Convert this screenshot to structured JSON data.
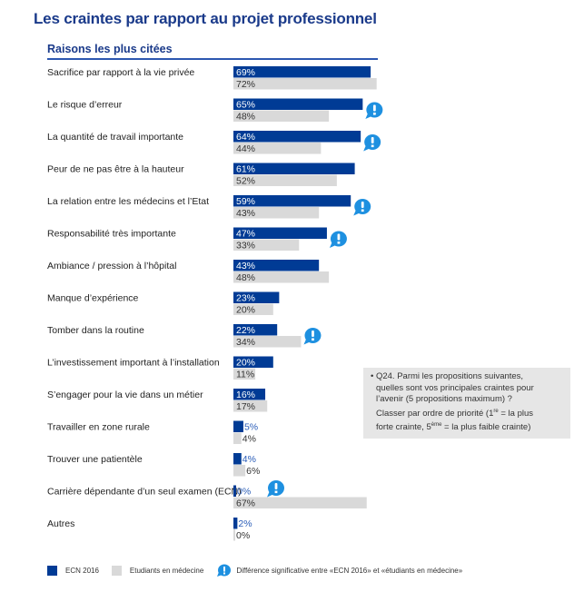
{
  "header": {
    "title": "Les craintes par rapport au projet professionnel",
    "subtitle": "Raisons les plus citées"
  },
  "colors": {
    "ecn": "#003b95",
    "students": "#d9d9d9",
    "significance_icon": "#1e90e0",
    "title": "#1a3a8a"
  },
  "chart_data": {
    "type": "bar",
    "orientation": "horizontal",
    "title": "Les craintes par rapport au projet professionnel",
    "subtitle": "Raisons les plus citées",
    "xlabel": "",
    "ylabel": "",
    "xlim": [
      0,
      100
    ],
    "unit": "%",
    "grid": false,
    "legend_position": "bottom-left",
    "categories": [
      "Sacrifice par rapport à la vie privée",
      "Le risque d’erreur",
      "La quantité de travail importante",
      "Peur de ne pas être à la hauteur",
      "La relation entre les médecins et l’Etat",
      "Responsabilité très importante",
      "Ambiance / pression à l’hôpital",
      "Manque d’expérience",
      "Tomber dans la routine",
      "L’investissement important à l’installation",
      "S’engager pour la vie dans un métier",
      "Travailler en zone rurale",
      "Trouver une patientèle",
      "Carrière dépendante d’un seul examen (ECN)",
      "Autres"
    ],
    "series": [
      {
        "name": "ECN 2016",
        "values": [
          69,
          65,
          64,
          61,
          59,
          47,
          43,
          23,
          22,
          20,
          16,
          5,
          4,
          0,
          2
        ]
      },
      {
        "name": "Etudiants en médecine",
        "values": [
          72,
          48,
          44,
          52,
          43,
          33,
          48,
          20,
          34,
          11,
          17,
          4,
          6,
          67,
          0
        ]
      }
    ],
    "significant_difference": [
      false,
      true,
      true,
      false,
      true,
      true,
      false,
      false,
      true,
      false,
      false,
      false,
      false,
      true,
      false
    ],
    "legend": [
      "ECN 2016",
      "Etudiants en médecine",
      "Différence significative entre «ECN 2016» et «étudiants en médecine»"
    ]
  },
  "note": {
    "line1": "• Q24. Parmi les propositions suivantes,",
    "line2": "quelles sont vos principales craintes pour",
    "line3": "l’avenir (5 propositions maximum) ?",
    "line4a": "Classer par ordre de priorité (1",
    "sup1": "re",
    "line4b": " = la plus",
    "line5a": "forte crainte, 5",
    "sup2": "ème",
    "line5b": " = la plus faible crainte)"
  },
  "legend": {
    "ecn": "ECN 2016",
    "students": "Etudiants en médecine",
    "significance": "Différence significative entre «ECN 2016» et «étudiants en médecine»"
  }
}
